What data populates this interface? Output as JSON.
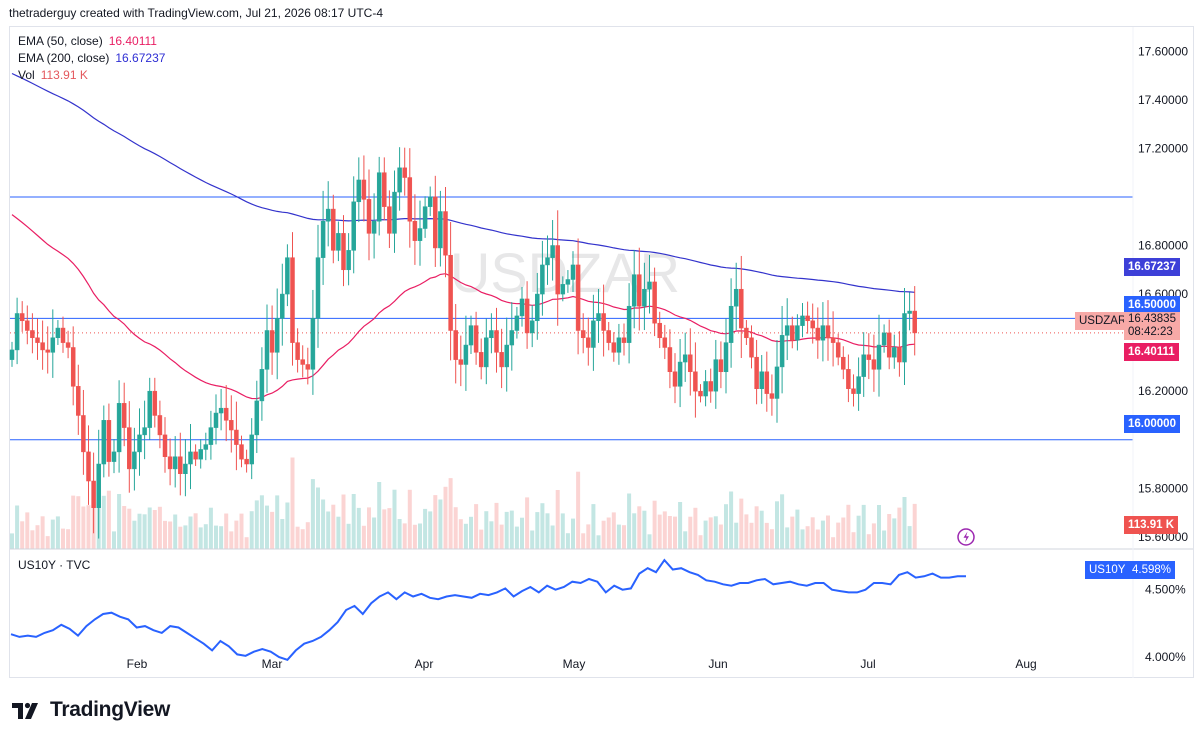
{
  "header": {
    "caption": "thetraderguy created with TradingView.com, Jul 21, 2026 08:17 UTC-4"
  },
  "legend": [
    {
      "name": "EMA (50, close)",
      "value": "16.40111",
      "color": "#e91e63"
    },
    {
      "name": "EMA (200, close)",
      "value": "16.67237",
      "color": "#2f2fd4"
    },
    {
      "name": "Vol",
      "value": "113.91 K",
      "color": "#e4585d"
    }
  ],
  "watermark": "USDZAR",
  "footer": {
    "brand": "TradingView"
  },
  "colors": {
    "up": "#26a69a",
    "down": "#ef5350",
    "ema50": "#e91e63",
    "ema200": "#3333cc",
    "hline": "#2962ff",
    "us10y": "#2962ff"
  },
  "chart_data": [
    {
      "type": "candlestick",
      "symbol": "USDZAR",
      "title": "",
      "x_axis": {
        "ticks": [
          "Feb",
          "Mar",
          "Apr",
          "May",
          "Jun",
          "Jul",
          "Aug"
        ]
      },
      "y_axis": {
        "ticks": [
          "17.60000",
          "17.40000",
          "17.20000",
          "16.80000",
          "16.60000",
          "16.20000",
          "15.80000",
          "15.60000"
        ],
        "range": [
          15.55,
          17.7
        ]
      },
      "horizontal_lines": [
        {
          "value": 17.0,
          "label": "17.00000"
        },
        {
          "value": 16.5,
          "label": "16.50000"
        },
        {
          "value": 16.0,
          "label": "16.00000"
        }
      ],
      "price_tags": [
        {
          "label": "16.67237",
          "kind": "ema200"
        },
        {
          "label": "16.50000",
          "kind": "line"
        },
        {
          "label": "USDZAR",
          "kind": "symbol"
        },
        {
          "label": "16.43835",
          "kind": "price"
        },
        {
          "label": "08:42:23",
          "kind": "countdown"
        },
        {
          "label": "16.40111",
          "kind": "ema50"
        },
        {
          "label": "16.00000",
          "kind": "line"
        },
        {
          "label": "113.91 K",
          "kind": "volume"
        }
      ],
      "closes": [
        16.37,
        16.52,
        16.49,
        16.45,
        16.42,
        16.4,
        16.37,
        16.36,
        16.42,
        16.46,
        16.4,
        16.38,
        16.22,
        16.1,
        15.95,
        15.83,
        15.72,
        15.9,
        16.08,
        15.91,
        15.95,
        16.15,
        16.05,
        15.88,
        15.95,
        16.02,
        16.05,
        16.2,
        16.1,
        16.02,
        15.93,
        15.88,
        15.93,
        15.86,
        15.9,
        15.95,
        15.92,
        15.96,
        15.98,
        16.05,
        16.11,
        16.13,
        16.08,
        16.04,
        15.98,
        15.92,
        15.9,
        16.02,
        16.16,
        16.29,
        16.45,
        16.36,
        16.5,
        16.6,
        16.75,
        16.4,
        16.33,
        16.31,
        16.29,
        16.5,
        16.75,
        16.9,
        16.95,
        16.78,
        16.85,
        16.7,
        16.78,
        16.98,
        17.07,
        16.99,
        16.85,
        16.9,
        17.1,
        16.96,
        16.85,
        17.02,
        17.12,
        17.08,
        16.9,
        16.82,
        16.87,
        16.96,
        17.0,
        16.79,
        16.94,
        16.76,
        16.45,
        16.33,
        16.31,
        16.39,
        16.47,
        16.36,
        16.3,
        16.42,
        16.45,
        16.36,
        16.3,
        16.39,
        16.45,
        16.51,
        16.58,
        16.44,
        16.49,
        16.6,
        16.72,
        16.75,
        16.8,
        16.6,
        16.64,
        16.66,
        16.72,
        16.45,
        16.42,
        16.38,
        16.49,
        16.52,
        16.45,
        16.4,
        16.36,
        16.42,
        16.4,
        16.55,
        16.68,
        16.55,
        16.62,
        16.65,
        16.48,
        16.42,
        16.38,
        16.28,
        16.22,
        16.32,
        16.35,
        16.28,
        16.2,
        16.18,
        16.24,
        16.2,
        16.33,
        16.28,
        16.4,
        16.55,
        16.62,
        16.46,
        16.42,
        16.34,
        16.21,
        16.28,
        16.19,
        16.17,
        16.3,
        16.43,
        16.47,
        16.41,
        16.47,
        16.51,
        16.49,
        16.46,
        16.41,
        16.47,
        16.42,
        16.4,
        16.34,
        16.29,
        16.21,
        16.19,
        16.26,
        16.35,
        16.33,
        16.29,
        16.39,
        16.44,
        16.34,
        16.38,
        16.32,
        16.52,
        16.53,
        16.44
      ]
    },
    {
      "type": "line",
      "name": "US10Y",
      "legend": "US10Y · TVC",
      "last_value": "4.598%",
      "y_axis": {
        "ticks": [
          "4.500%",
          "4.000%"
        ],
        "range": [
          3.86,
          4.78
        ]
      },
      "values": [
        4.17,
        4.15,
        4.16,
        4.15,
        4.18,
        4.2,
        4.24,
        4.21,
        4.16,
        4.23,
        4.28,
        4.32,
        4.33,
        4.3,
        4.28,
        4.22,
        4.23,
        4.2,
        4.18,
        4.23,
        4.22,
        4.18,
        4.14,
        4.1,
        4.05,
        4.12,
        4.08,
        4.02,
        4.01,
        4.04,
        4.06,
        4.04,
        4.0,
        3.98,
        4.05,
        4.1,
        4.12,
        4.15,
        4.2,
        4.26,
        4.35,
        4.38,
        4.32,
        4.4,
        4.45,
        4.48,
        4.43,
        4.48,
        4.45,
        4.47,
        4.44,
        4.43,
        4.45,
        4.46,
        4.45,
        4.44,
        4.47,
        4.46,
        4.48,
        4.51,
        4.45,
        4.49,
        4.52,
        4.48,
        4.53,
        4.5,
        4.52,
        4.56,
        4.55,
        4.58,
        4.56,
        4.48,
        4.53,
        4.5,
        4.51,
        4.62,
        4.66,
        4.63,
        4.72,
        4.65,
        4.66,
        4.63,
        4.61,
        4.57,
        4.56,
        4.54,
        4.53,
        4.55,
        4.55,
        4.57,
        4.58,
        4.54,
        4.55,
        4.56,
        4.54,
        4.53,
        4.55,
        4.55,
        4.5,
        4.49,
        4.48,
        4.48,
        4.5,
        4.55,
        4.55,
        4.54,
        4.61,
        4.63,
        4.59,
        4.6,
        4.62,
        4.59,
        4.59,
        4.6,
        4.6
      ]
    }
  ]
}
